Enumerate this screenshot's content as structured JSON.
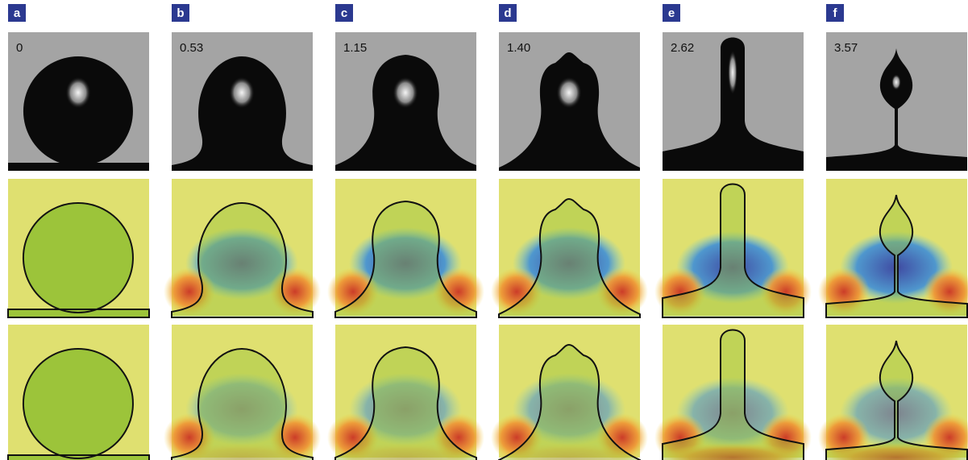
{
  "panels": [
    {
      "label": "a",
      "time": "0"
    },
    {
      "label": "b",
      "time": "0.53"
    },
    {
      "label": "c",
      "time": "1.15"
    },
    {
      "label": "d",
      "time": "1.40"
    },
    {
      "label": "e",
      "time": "2.62"
    },
    {
      "label": "f",
      "time": "3.57"
    }
  ]
}
